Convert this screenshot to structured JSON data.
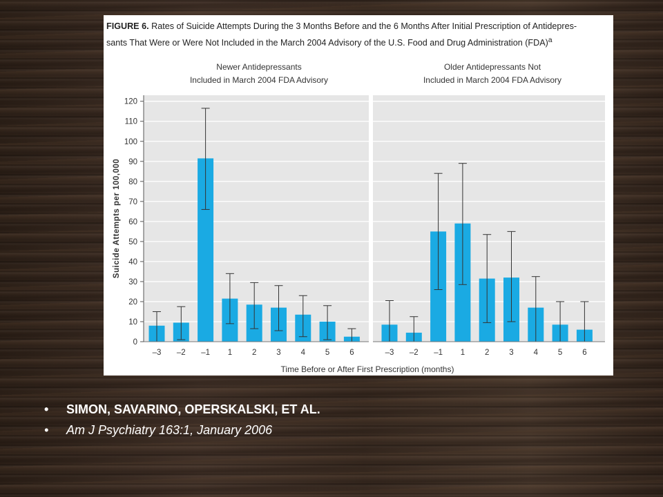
{
  "figure": {
    "title_bold": "FIGURE 6.",
    "title_line1_rest": " Rates of Suicide Attempts During the 3 Months Before and the 6 Months After Initial Prescription of Antidepres-",
    "title_line2": "sants That Were or Were Not Included in the March 2004 Advisory of the U.S. Food and Drug Administration (FDA)",
    "title_superscript": "a"
  },
  "chart_data": [
    {
      "type": "bar",
      "title": "Newer Antidepressants Included in March 2004 FDA Advisory",
      "title_lines": [
        "Newer Antidepressants",
        "Included in March 2004 FDA Advisory"
      ],
      "categories": [
        "–3",
        "–2",
        "–1",
        "1",
        "2",
        "3",
        "4",
        "5",
        "6"
      ],
      "values": [
        8,
        9.5,
        91.5,
        21.5,
        18.5,
        17,
        13.5,
        10,
        2.5
      ],
      "error_upper": [
        15,
        17.5,
        116.5,
        34,
        29.5,
        28,
        23,
        18,
        6.5
      ],
      "error_lower": [
        0,
        1,
        66,
        9,
        6.5,
        5.5,
        2.5,
        1,
        0
      ],
      "ylabel": "Suicide Attempts per 100,000",
      "yticks": [
        0,
        10,
        20,
        30,
        40,
        50,
        60,
        70,
        80,
        90,
        100,
        110,
        120
      ],
      "ylim": [
        0,
        123
      ],
      "grid": true,
      "bar_color": "#1aaae3"
    },
    {
      "type": "bar",
      "title": "Older Antidepressants Not Included in March 2004 FDA Advisory",
      "title_lines": [
        "Older Antidepressants Not",
        "Included in March 2004 FDA Advisory"
      ],
      "categories": [
        "–3",
        "–2",
        "–1",
        "1",
        "2",
        "3",
        "4",
        "5",
        "6"
      ],
      "values": [
        8.5,
        4.5,
        55,
        59,
        31.5,
        32,
        17,
        8.5,
        6
      ],
      "error_upper": [
        20.5,
        12.5,
        84,
        89,
        53.5,
        55,
        32.5,
        20,
        20
      ],
      "error_lower": [
        0,
        0,
        26,
        28.5,
        9.5,
        10,
        0,
        0,
        0
      ],
      "ylim": [
        0,
        123
      ],
      "grid": true,
      "bar_color": "#1aaae3"
    }
  ],
  "xlabel": "Time Before or After First Prescription (months)",
  "bullets": [
    "SIMON, SAVARINO, OPERSKALSKI, ET AL.",
    "Am J Psychiatry 163:1, January 2006"
  ],
  "colors": {
    "plot_background": "#e6e6e6",
    "bar": "#1aaae3",
    "gridline": "#ffffff",
    "error_bar": "#333333",
    "slide_background": "#3a2b21",
    "bullet_text": "#ffffff"
  }
}
